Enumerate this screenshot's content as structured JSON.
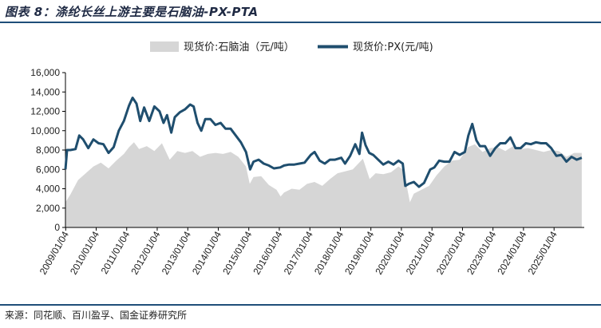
{
  "header": {
    "title": "图表 8：涤纶长丝上游主要是石脑油-PX-PTA"
  },
  "footer": {
    "source": "来源：同花顺、百川盈孚、国金证券研究所"
  },
  "colors": {
    "area": "#d6d6d6",
    "line": "#1f4e6e",
    "rule": "#1f4e79"
  },
  "chart_data": {
    "type": "line",
    "ylim": [
      0,
      16000
    ],
    "yticks": [
      "0",
      "2,000",
      "4,000",
      "6,000",
      "8,000",
      "10,000",
      "12,000",
      "14,000",
      "16,000"
    ],
    "ytick_values": [
      0,
      2000,
      4000,
      6000,
      8000,
      10000,
      12000,
      14000,
      16000
    ],
    "xlim": [
      "2009-01-01",
      "2025-12-31"
    ],
    "xticks": [
      "2009/01/04",
      "2010/01/04",
      "2011/01/04",
      "2012/01/04",
      "2013/01/04",
      "2014/01/04",
      "2015/01/04",
      "2016/01/04",
      "2017/01/04",
      "2018/01/04",
      "2019/01/04",
      "2020/01/04",
      "2021/01/04",
      "2022/01/04",
      "2023/01/04",
      "2024/01/04",
      "2025/01/04"
    ],
    "legend": {
      "position": "top"
    },
    "series": [
      {
        "name": "现货价:石脑油（元/吨）",
        "style": "area",
        "x": [
          "2009-01-01",
          "2009-03-01",
          "2009-06-01",
          "2009-09-01",
          "2009-12-01",
          "2010-03-01",
          "2010-06-01",
          "2010-09-01",
          "2010-12-01",
          "2011-02-01",
          "2011-04-01",
          "2011-06-01",
          "2011-09-01",
          "2011-12-01",
          "2012-03-01",
          "2012-06-01",
          "2012-09-01",
          "2012-12-01",
          "2013-03-01",
          "2013-06-01",
          "2013-09-01",
          "2013-12-01",
          "2014-03-01",
          "2014-06-01",
          "2014-09-01",
          "2014-12-01",
          "2015-01-15",
          "2015-03-01",
          "2015-06-01",
          "2015-09-01",
          "2015-12-01",
          "2016-01-20",
          "2016-03-01",
          "2016-06-01",
          "2016-09-01",
          "2016-12-01",
          "2017-03-01",
          "2017-06-01",
          "2017-09-01",
          "2017-12-01",
          "2018-03-01",
          "2018-06-01",
          "2018-10-01",
          "2018-12-20",
          "2019-03-01",
          "2019-06-01",
          "2019-09-01",
          "2019-12-01",
          "2020-02-01",
          "2020-04-15",
          "2020-06-01",
          "2020-09-01",
          "2020-12-01",
          "2021-03-01",
          "2021-06-01",
          "2021-09-01",
          "2021-12-01",
          "2022-03-10",
          "2022-06-01",
          "2022-09-01",
          "2022-12-01",
          "2023-03-01",
          "2023-06-01",
          "2023-09-01",
          "2023-12-01",
          "2024-03-01",
          "2024-06-01",
          "2024-09-01",
          "2024-12-01",
          "2025-03-01",
          "2025-06-01",
          "2025-09-01",
          "2025-12-01"
        ],
        "y": [
          2600,
          3400,
          4900,
          5600,
          6300,
          6700,
          6100,
          6900,
          7600,
          8300,
          8800,
          8100,
          8400,
          7900,
          8700,
          7000,
          7900,
          7700,
          7900,
          7300,
          7600,
          7700,
          7600,
          7800,
          7300,
          6300,
          4500,
          5200,
          5300,
          4400,
          3900,
          3200,
          3600,
          4000,
          3900,
          4500,
          4700,
          4300,
          5000,
          5600,
          5800,
          6000,
          7100,
          5000,
          5600,
          5500,
          5700,
          6300,
          5900,
          2600,
          3500,
          3900,
          4300,
          5400,
          6300,
          6900,
          7000,
          8300,
          8600,
          7800,
          8200,
          8300,
          7900,
          8400,
          8100,
          8200,
          8000,
          7800,
          8000,
          7900,
          7300,
          7700,
          7700
        ]
      },
      {
        "name": "现货价:PX(元/吨)",
        "style": "line",
        "x": [
          "2009-01-01",
          "2009-01-20",
          "2009-03-01",
          "2009-05-01",
          "2009-06-15",
          "2009-08-01",
          "2009-10-01",
          "2009-12-01",
          "2010-02-01",
          "2010-04-01",
          "2010-06-01",
          "2010-08-01",
          "2010-10-01",
          "2010-12-01",
          "2011-02-01",
          "2011-03-15",
          "2011-05-01",
          "2011-06-15",
          "2011-08-01",
          "2011-10-01",
          "2011-12-01",
          "2012-02-01",
          "2012-03-20",
          "2012-05-01",
          "2012-06-20",
          "2012-08-01",
          "2012-10-01",
          "2012-12-01",
          "2013-02-01",
          "2013-03-15",
          "2013-05-01",
          "2013-06-15",
          "2013-08-01",
          "2013-10-01",
          "2013-12-01",
          "2014-02-01",
          "2014-04-01",
          "2014-06-01",
          "2014-08-01",
          "2014-10-01",
          "2014-12-01",
          "2015-01-20",
          "2015-03-01",
          "2015-05-01",
          "2015-07-01",
          "2015-09-01",
          "2015-11-01",
          "2016-01-15",
          "2016-03-01",
          "2016-05-01",
          "2016-07-01",
          "2016-09-01",
          "2016-11-01",
          "2017-01-15",
          "2017-03-01",
          "2017-05-01",
          "2017-07-01",
          "2017-09-01",
          "2017-11-01",
          "2018-01-15",
          "2018-03-01",
          "2018-05-01",
          "2018-07-01",
          "2018-08-20",
          "2018-09-20",
          "2018-11-01",
          "2018-12-15",
          "2019-02-01",
          "2019-04-01",
          "2019-06-01",
          "2019-08-01",
          "2019-10-01",
          "2019-12-01",
          "2020-01-20",
          "2020-02-20",
          "2020-04-01",
          "2020-06-01",
          "2020-08-01",
          "2020-10-01",
          "2020-12-15",
          "2021-02-01",
          "2021-04-01",
          "2021-06-01",
          "2021-08-01",
          "2021-10-01",
          "2021-12-01",
          "2022-02-01",
          "2022-03-15",
          "2022-05-01",
          "2022-06-20",
          "2022-08-01",
          "2022-10-01",
          "2022-12-01",
          "2023-02-01",
          "2023-04-01",
          "2023-06-01",
          "2023-08-01",
          "2023-10-01",
          "2023-12-01",
          "2024-02-01",
          "2024-04-01",
          "2024-06-01",
          "2024-08-01",
          "2024-10-01",
          "2024-12-01",
          "2025-02-01",
          "2025-04-01",
          "2025-06-01",
          "2025-08-01",
          "2025-10-01",
          "2025-12-01"
        ],
        "y": [
          6000,
          8000,
          8000,
          8100,
          9500,
          9100,
          8200,
          9100,
          8700,
          8600,
          7700,
          8300,
          10000,
          11000,
          12600,
          13400,
          12800,
          11000,
          12400,
          11000,
          12500,
          12000,
          10800,
          11600,
          9800,
          11400,
          11900,
          12200,
          12700,
          12500,
          10800,
          10000,
          11200,
          11200,
          10600,
          10800,
          10200,
          10200,
          9500,
          8800,
          7800,
          6000,
          6800,
          7000,
          6600,
          6400,
          6100,
          6200,
          6400,
          6500,
          6500,
          6600,
          6700,
          7500,
          7800,
          6900,
          6600,
          7000,
          7000,
          7200,
          6600,
          7400,
          8600,
          7600,
          9800,
          8500,
          7700,
          7500,
          7000,
          6500,
          6800,
          6500,
          6900,
          6600,
          4300,
          4500,
          4700,
          4200,
          4600,
          6000,
          6200,
          6900,
          6800,
          6800,
          7800,
          7500,
          7800,
          9500,
          10700,
          9000,
          8400,
          8400,
          7400,
          8200,
          8700,
          8700,
          9300,
          8200,
          8200,
          8700,
          8600,
          8800,
          8700,
          8700,
          8200,
          7400,
          7500,
          6800,
          7300,
          7000,
          7200
        ]
      }
    ]
  }
}
